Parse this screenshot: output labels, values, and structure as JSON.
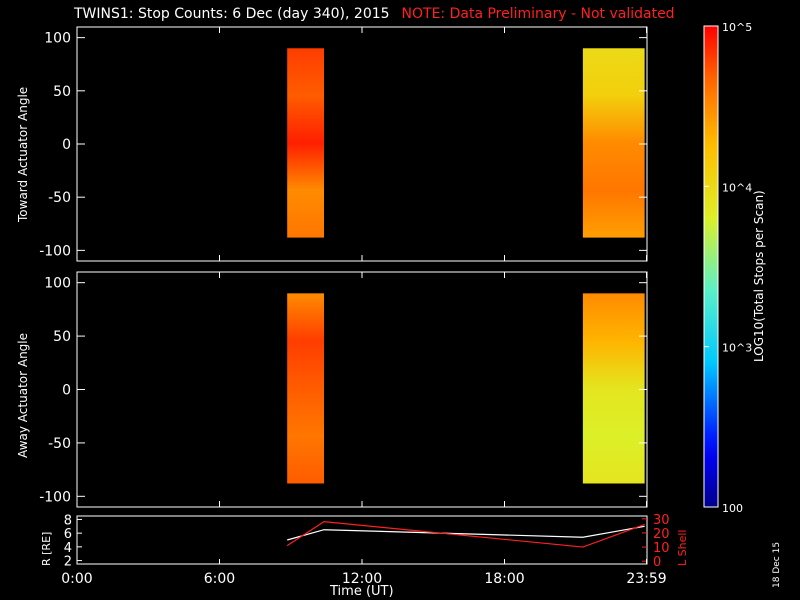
{
  "title": {
    "main": "TWINS1: Stop Counts:  6 Dec (day 340), 2015",
    "note": "NOTE: Data Preliminary - Not validated"
  },
  "stamp": "18 Dec 15",
  "colorbar": {
    "label": "LOG10(Total Stops per Scan)",
    "ticks": [
      "10^5",
      "10^4",
      "10^3",
      "100"
    ],
    "scale": "log",
    "range": [
      100,
      100000
    ]
  },
  "chart_data": [
    {
      "type": "heatmap",
      "panel": "toward",
      "ylabel": "Toward Actuator Angle",
      "ylim": [
        -110,
        110
      ],
      "yticks": [
        100,
        50,
        0,
        -50,
        -100
      ],
      "xlim": [
        0,
        24
      ],
      "blocks": [
        {
          "t_start": 8.85,
          "t_end": 10.4,
          "angle_range": [
            -88,
            90
          ],
          "level_log10": 4.8
        },
        {
          "t_start": 21.3,
          "t_end": 23.9,
          "angle_range": [
            -88,
            90
          ],
          "level_log10": 4.1
        }
      ]
    },
    {
      "type": "heatmap",
      "panel": "away",
      "ylabel": "Away Actuator Angle",
      "ylim": [
        -110,
        110
      ],
      "yticks": [
        100,
        50,
        0,
        -50,
        -100
      ],
      "xlim": [
        0,
        24
      ],
      "blocks": [
        {
          "t_start": 8.85,
          "t_end": 10.4,
          "angle_range": [
            -88,
            90
          ],
          "level_log10": 4.7
        },
        {
          "t_start": 21.3,
          "t_end": 23.9,
          "angle_range": [
            -88,
            90
          ],
          "level_log10": 3.9
        }
      ]
    },
    {
      "type": "line",
      "panel": "orbit",
      "xlabel": "Time (UT)",
      "xticks": [
        "0:00",
        "6:00",
        "12:00",
        "18:00",
        "23:59"
      ],
      "xlim": [
        0,
        24
      ],
      "ylabel_left": "R [RE]",
      "ylabel_right": "L Shell",
      "yticks_left": [
        8,
        6,
        4,
        2
      ],
      "yticks_right": [
        30,
        20,
        10,
        0
      ],
      "series": [
        {
          "axis": "left",
          "color": "#ffffff",
          "x": [
            8.85,
            10.4,
            21.3,
            23.9
          ],
          "y": [
            5.0,
            6.5,
            5.4,
            7.0
          ]
        },
        {
          "axis": "right",
          "color": "#ff2020",
          "x": [
            8.85,
            10.4,
            21.3,
            23.9
          ],
          "y": [
            11,
            28,
            10,
            26
          ]
        }
      ]
    }
  ]
}
